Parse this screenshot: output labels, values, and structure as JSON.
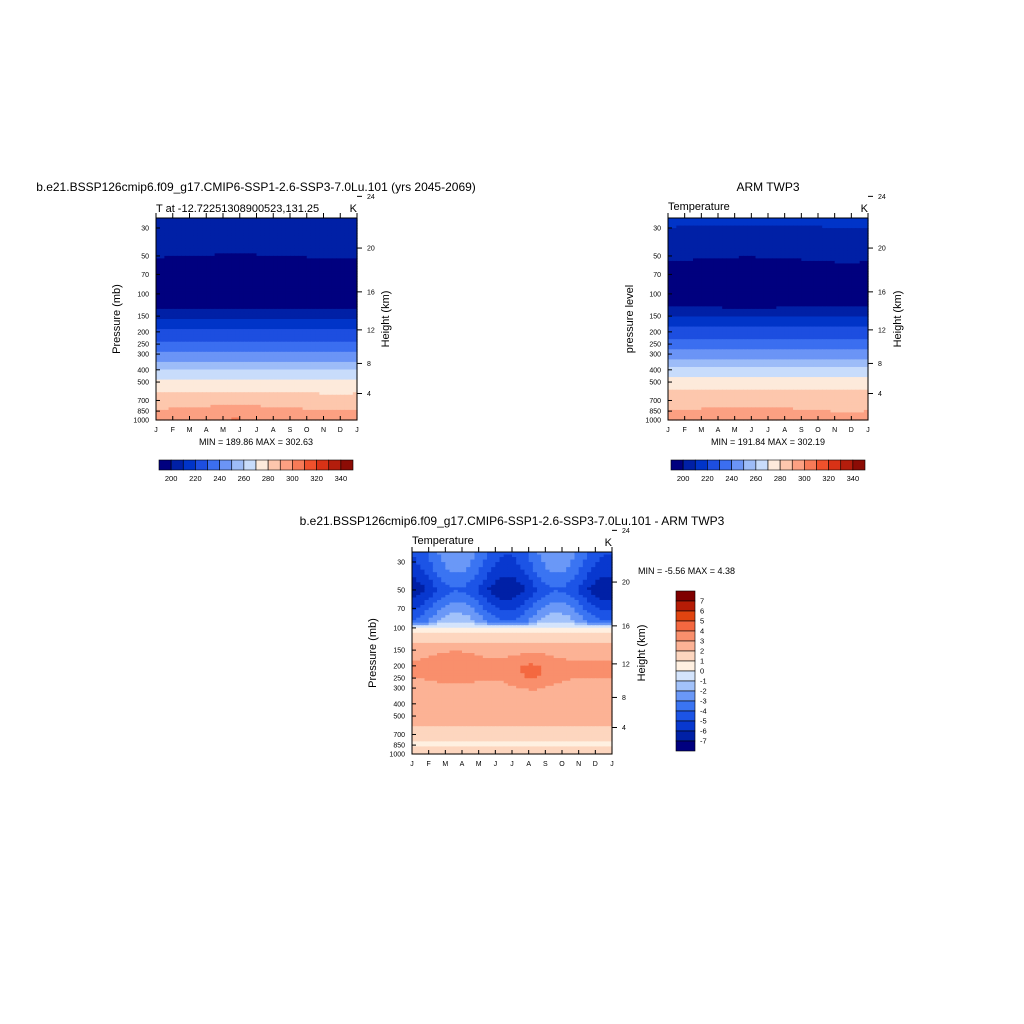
{
  "panels": [
    {
      "title": "b.e21.BSSP126cmip6.f09_g17.CMIP6-SSP1-2.6-SSP3-7.0Lu.101 (yrs 2045-2069)",
      "left_label": "T at -12.72251308900523,131.25",
      "right_label": "K",
      "ylabel": "Pressure (mb)",
      "y2label": "Height (km)",
      "minmax": "MIN = 189.86 MAX = 302.63"
    },
    {
      "title": "ARM TWP3",
      "left_label": "Temperature",
      "right_label": "K",
      "ylabel": "pressure level",
      "y2label": "Height (km)",
      "minmax": "MIN = 191.84 MAX = 302.19"
    },
    {
      "title": "b.e21.BSSP126cmip6.f09_g17.CMIP6-SSP1-2.6-SSP3-7.0Lu.101 - ARM TWP3",
      "left_label": "Temperature",
      "right_label": "K",
      "ylabel": "Pressure (mb)",
      "y2label": "Height (km)",
      "minmax": "MIN =  -5.56 MAX =   4.38"
    }
  ],
  "chart_data": [
    {
      "type": "heatmap",
      "title": "b.e21.BSSP126cmip6.f09_g17.CMIP6-SSP1-2.6-SSP3-7.0Lu.101 (yrs 2045-2069)",
      "x": [
        "J",
        "F",
        "M",
        "A",
        "M",
        "J",
        "J",
        "A",
        "S",
        "O",
        "N",
        "D",
        "J"
      ],
      "y_ticks": [
        30,
        50,
        70,
        100,
        150,
        200,
        250,
        300,
        400,
        500,
        700,
        850,
        1000
      ],
      "y2_ticks": [
        4,
        8,
        12,
        16,
        20,
        24
      ],
      "ylim": [
        1000,
        25
      ],
      "levels_temperature_K": [
        {
          "p": 25,
          "v": 210
        },
        {
          "p": 40,
          "v": 207
        },
        {
          "p": 55,
          "v": 197
        },
        {
          "p": 70,
          "v": 193
        },
        {
          "p": 90,
          "v": 193
        },
        {
          "p": 120,
          "v": 195
        },
        {
          "p": 150,
          "v": 207
        },
        {
          "p": 175,
          "v": 215
        },
        {
          "p": 200,
          "v": 222
        },
        {
          "p": 250,
          "v": 232
        },
        {
          "p": 300,
          "v": 242
        },
        {
          "p": 350,
          "v": 252
        },
        {
          "p": 400,
          "v": 260
        },
        {
          "p": 450,
          "v": 266
        },
        {
          "p": 500,
          "v": 272
        },
        {
          "p": 600,
          "v": 280
        },
        {
          "p": 700,
          "v": 286
        },
        {
          "p": 850,
          "v": 292
        },
        {
          "p": 925,
          "v": 296
        },
        {
          "p": 1000,
          "v": 300
        }
      ],
      "colorbar_ticks": [
        200,
        220,
        240,
        260,
        280,
        300,
        320,
        340
      ],
      "min": 189.86,
      "max": 302.63
    },
    {
      "type": "heatmap",
      "title": "ARM TWP3",
      "x": [
        "J",
        "F",
        "M",
        "A",
        "M",
        "J",
        "J",
        "A",
        "S",
        "O",
        "N",
        "D",
        "J"
      ],
      "y_ticks": [
        30,
        50,
        70,
        100,
        150,
        200,
        250,
        300,
        400,
        500,
        700,
        850,
        1000
      ],
      "y2_ticks": [
        4,
        8,
        12,
        16,
        20,
        24
      ],
      "ylim": [
        1000,
        25
      ],
      "levels_temperature_K": [
        {
          "p": 25,
          "v": 211
        },
        {
          "p": 40,
          "v": 208
        },
        {
          "p": 55,
          "v": 199
        },
        {
          "p": 70,
          "v": 194
        },
        {
          "p": 90,
          "v": 194
        },
        {
          "p": 120,
          "v": 197
        },
        {
          "p": 150,
          "v": 209
        },
        {
          "p": 175,
          "v": 218
        },
        {
          "p": 200,
          "v": 225
        },
        {
          "p": 250,
          "v": 234
        },
        {
          "p": 300,
          "v": 244
        },
        {
          "p": 350,
          "v": 254
        },
        {
          "p": 400,
          "v": 262
        },
        {
          "p": 450,
          "v": 268
        },
        {
          "p": 500,
          "v": 274
        },
        {
          "p": 600,
          "v": 281
        },
        {
          "p": 700,
          "v": 286
        },
        {
          "p": 850,
          "v": 291
        },
        {
          "p": 925,
          "v": 294
        },
        {
          "p": 1000,
          "v": 297
        }
      ],
      "colorbar_ticks": [
        200,
        220,
        240,
        260,
        280,
        300,
        320,
        340
      ],
      "min": 191.84,
      "max": 302.19
    },
    {
      "type": "heatmap",
      "title": "b.e21.BSSP126cmip6.f09_g17.CMIP6-SSP1-2.6-SSP3-7.0Lu.101 - ARM TWP3",
      "x": [
        "J",
        "F",
        "M",
        "A",
        "M",
        "J",
        "J",
        "A",
        "S",
        "O",
        "N",
        "D",
        "J"
      ],
      "y_ticks": [
        30,
        50,
        70,
        100,
        150,
        200,
        250,
        300,
        400,
        500,
        700,
        850,
        1000
      ],
      "y2_ticks": [
        4,
        8,
        12,
        16,
        20,
        24
      ],
      "ylim": [
        1000,
        25
      ],
      "levels_difference_K": [
        {
          "p": 25,
          "v": -3.5
        },
        {
          "p": 35,
          "v": -4.2
        },
        {
          "p": 50,
          "v": -5.5
        },
        {
          "p": 70,
          "v": -3.8
        },
        {
          "p": 90,
          "v": -2.5
        },
        {
          "p": 100,
          "v": 0.5
        },
        {
          "p": 120,
          "v": 1.5
        },
        {
          "p": 150,
          "v": 2.5
        },
        {
          "p": 200,
          "v": 3.2
        },
        {
          "p": 250,
          "v": 3.0
        },
        {
          "p": 300,
          "v": 2.5
        },
        {
          "p": 400,
          "v": 2.3
        },
        {
          "p": 500,
          "v": 2.4
        },
        {
          "p": 600,
          "v": 2.0
        },
        {
          "p": 700,
          "v": 1.2
        },
        {
          "p": 850,
          "v": 0.9
        },
        {
          "p": 1000,
          "v": 1.5
        }
      ],
      "colorbar_ticks": [
        7,
        6,
        5,
        4,
        3,
        2,
        1,
        0,
        -1,
        -2,
        -3,
        -4,
        -5,
        -6,
        -7
      ],
      "min": -5.56,
      "max": 4.38
    }
  ],
  "colors": {
    "temp_scale": [
      "#00007f",
      "#0020a6",
      "#0034c8",
      "#1d4ee0",
      "#3b6ef0",
      "#6b94f6",
      "#9dbcf8",
      "#c8dcfb",
      "#fdeadb",
      "#fdc7ad",
      "#fca082",
      "#f77a57",
      "#f0512c",
      "#d83216",
      "#b41d0c",
      "#8c0c05"
    ],
    "diff_scale": [
      "#00007f",
      "#0020a6",
      "#0838cf",
      "#1c54e6",
      "#3a74f2",
      "#6a98f7",
      "#a2c2fa",
      "#d4e4fc",
      "#fff0e1",
      "#fdd6bf",
      "#fcb295",
      "#f98f6c",
      "#f46840",
      "#e04410",
      "#b51c06",
      "#7f0000"
    ]
  }
}
